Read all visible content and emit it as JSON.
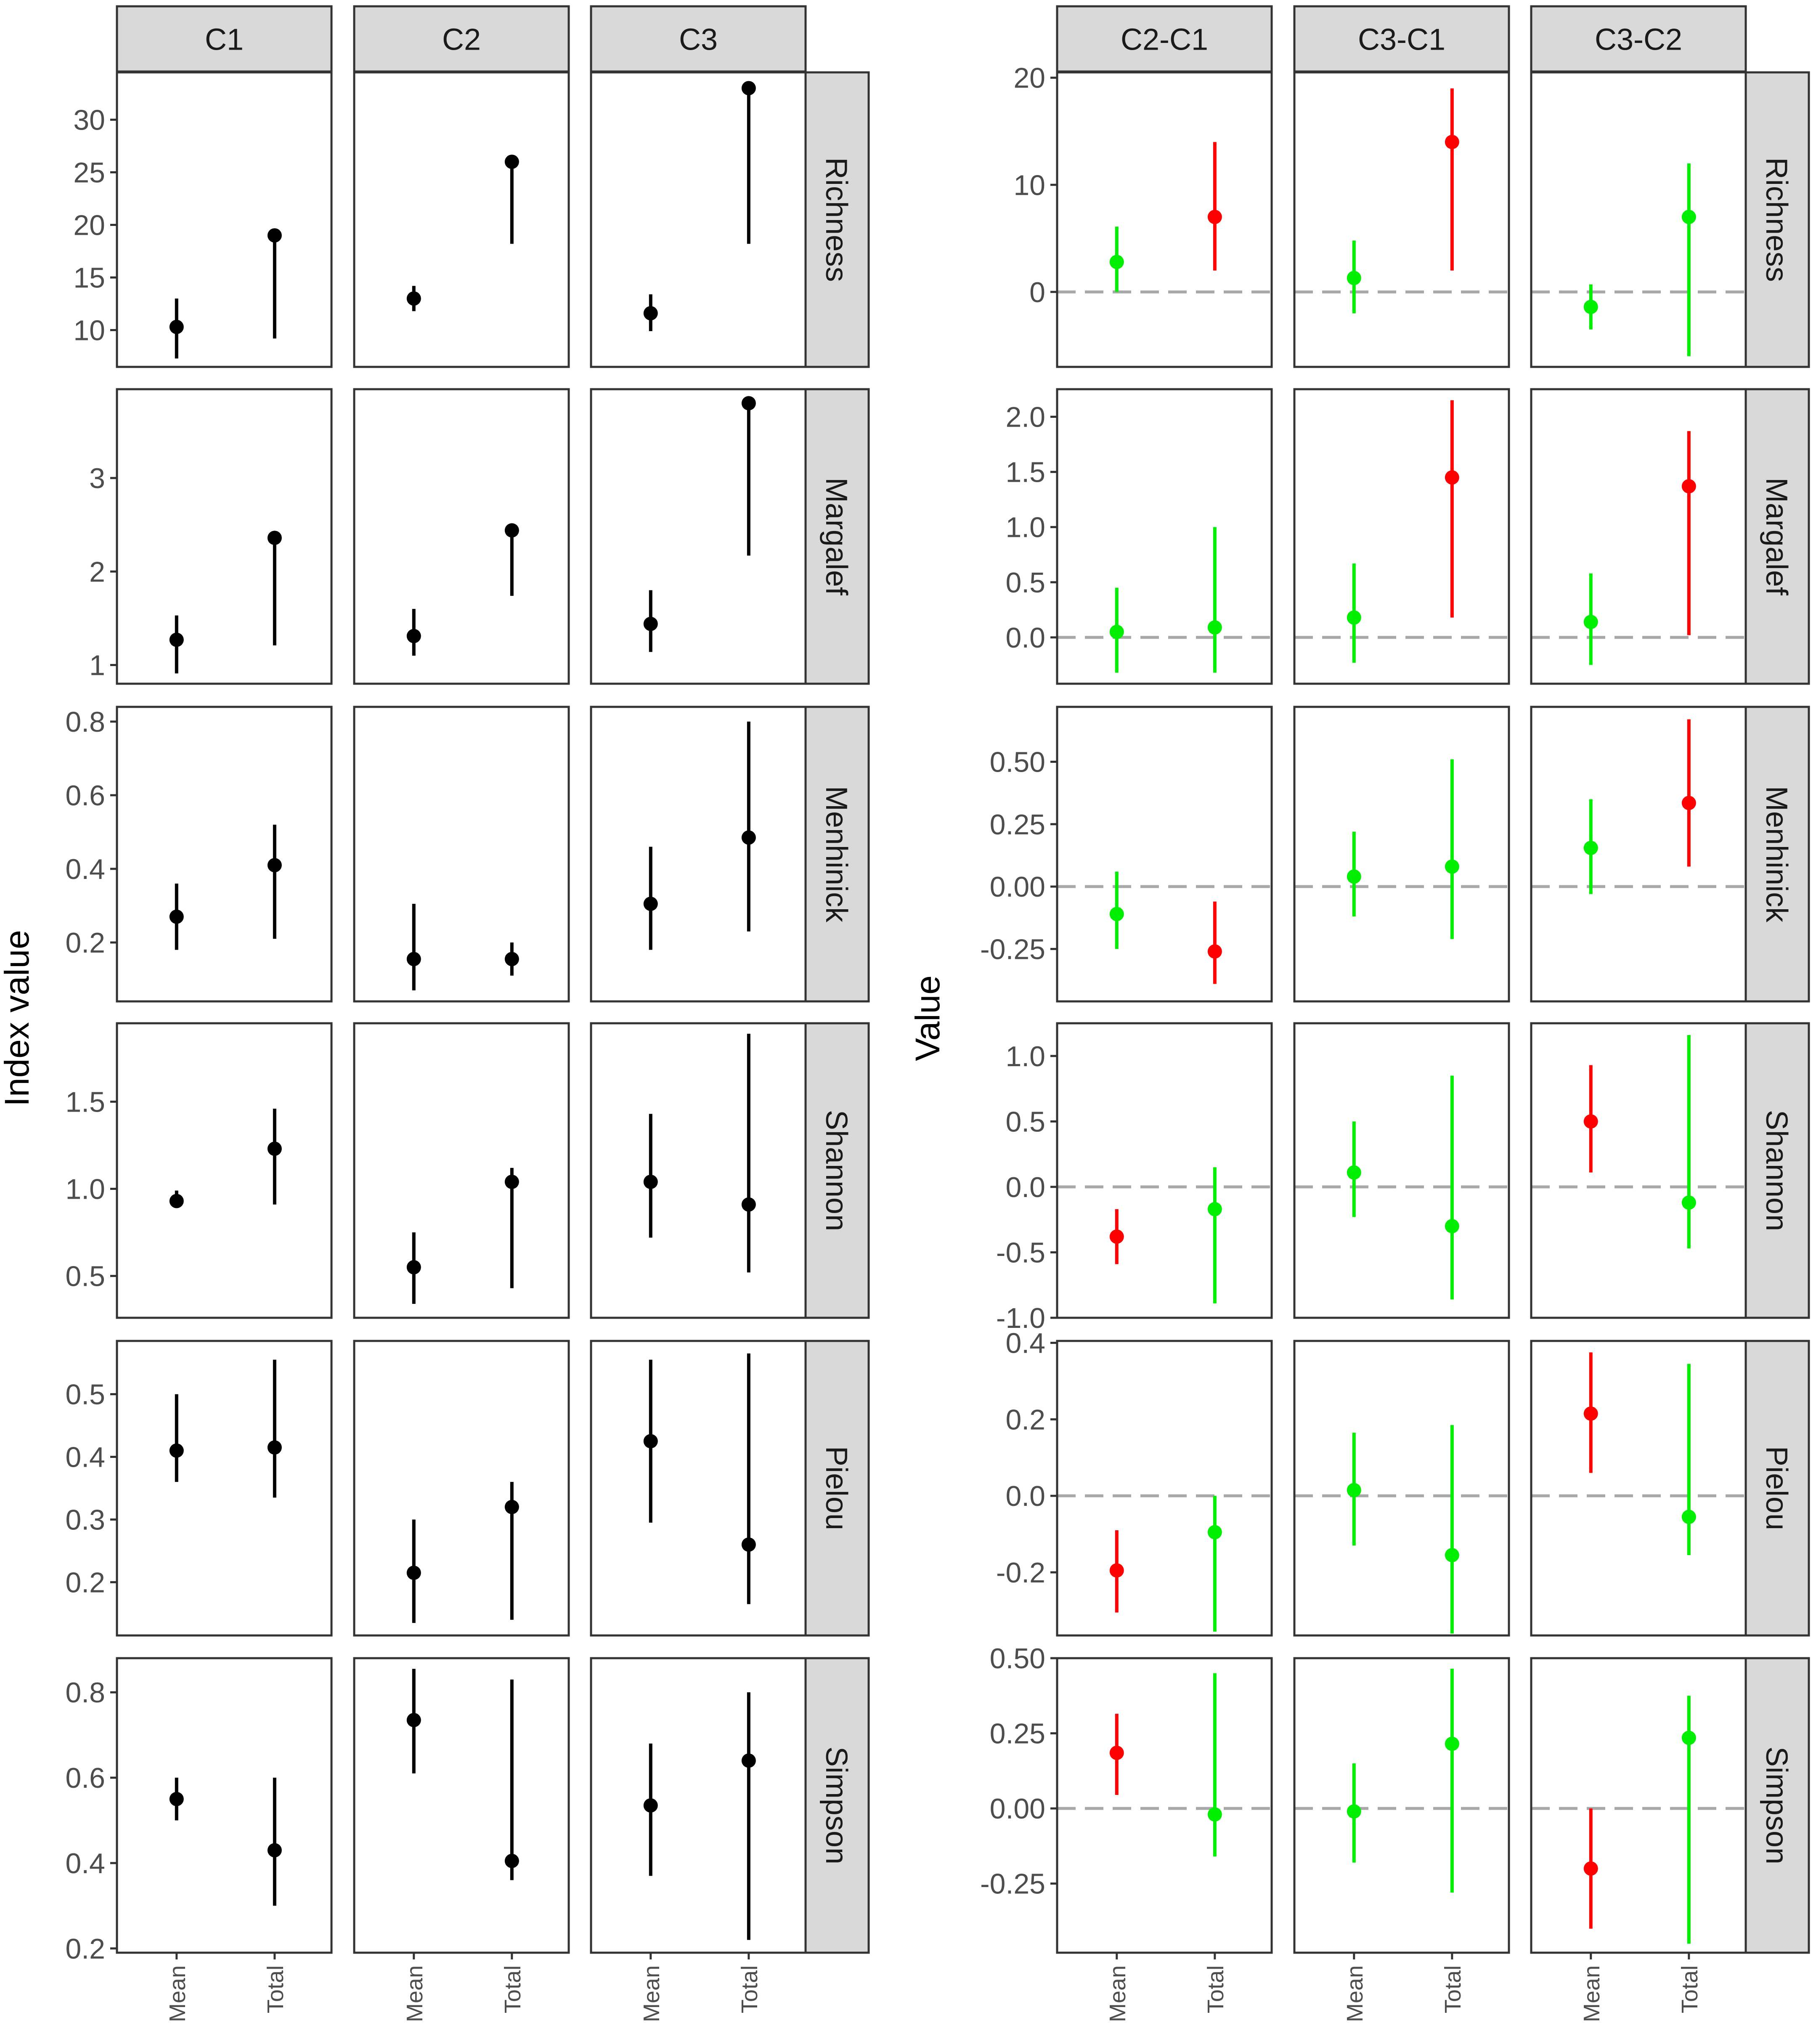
{
  "figure": {
    "left_ylabel": "Index value",
    "right_ylabel": "Value"
  },
  "colors": {
    "point": "#000000",
    "significant": "#ff0000",
    "nonsignificant": "#00ee00",
    "zero_line": "#a8a8a8",
    "strip_fill": "#d9d9d9",
    "panel_border": "#333333",
    "tick_text": "#4d4d4d"
  },
  "chart_data": [
    {
      "type": "pointrange",
      "title": "",
      "columns": [
        "C1",
        "C2",
        "C3"
      ],
      "rows": [
        "Richness",
        "Margalef",
        "Menhinick",
        "Shannon",
        "Pielou",
        "Simpson"
      ],
      "categories": [
        "Mean",
        "Total"
      ],
      "ylabel": "Index value",
      "xlabel": "",
      "panels": {
        "Richness": {
          "ylim": [
            6.5,
            34.5
          ],
          "yticks": [
            10,
            15,
            20,
            25,
            30
          ],
          "data": {
            "C1": [
              {
                "est": 10.3,
                "lo": 7.3,
                "hi": 13.0
              },
              {
                "est": 19.0,
                "lo": 9.2,
                "hi": 19.0
              }
            ],
            "C2": [
              {
                "est": 13.0,
                "lo": 11.8,
                "hi": 14.2
              },
              {
                "est": 26.0,
                "lo": 18.2,
                "hi": 26.0
              }
            ],
            "C3": [
              {
                "est": 11.6,
                "lo": 9.9,
                "hi": 13.4
              },
              {
                "est": 33.0,
                "lo": 18.2,
                "hi": 33.0
              }
            ]
          }
        },
        "Margalef": {
          "ylim": [
            0.8,
            3.95
          ],
          "yticks": [
            1,
            2,
            3
          ],
          "data": {
            "C1": [
              {
                "est": 1.27,
                "lo": 0.91,
                "hi": 1.53
              },
              {
                "est": 2.36,
                "lo": 1.21,
                "hi": 2.36
              }
            ],
            "C2": [
              {
                "est": 1.31,
                "lo": 1.1,
                "hi": 1.6
              },
              {
                "est": 2.44,
                "lo": 1.74,
                "hi": 2.44
              }
            ],
            "C3": [
              {
                "est": 1.44,
                "lo": 1.14,
                "hi": 1.8
              },
              {
                "est": 3.8,
                "lo": 2.17,
                "hi": 3.8
              }
            ]
          }
        },
        "Menhinick": {
          "ylim": [
            0.04,
            0.84
          ],
          "yticks": [
            0.2,
            0.4,
            0.6,
            0.8
          ],
          "data": {
            "C1": [
              {
                "est": 0.27,
                "lo": 0.18,
                "hi": 0.36
              },
              {
                "est": 0.41,
                "lo": 0.21,
                "hi": 0.52
              }
            ],
            "C2": [
              {
                "est": 0.155,
                "lo": 0.07,
                "hi": 0.305
              },
              {
                "est": 0.155,
                "lo": 0.11,
                "hi": 0.2
              }
            ],
            "C3": [
              {
                "est": 0.305,
                "lo": 0.18,
                "hi": 0.46
              },
              {
                "est": 0.485,
                "lo": 0.23,
                "hi": 0.8
              }
            ]
          }
        },
        "Shannon": {
          "ylim": [
            0.26,
            1.95
          ],
          "yticks": [
            0.5,
            1.0,
            1.5
          ],
          "data": {
            "C1": [
              {
                "est": 0.93,
                "lo": 0.89,
                "hi": 0.99
              },
              {
                "est": 1.23,
                "lo": 0.91,
                "hi": 1.46
              }
            ],
            "C2": [
              {
                "est": 0.55,
                "lo": 0.34,
                "hi": 0.75
              },
              {
                "est": 1.04,
                "lo": 0.43,
                "hi": 1.12
              }
            ],
            "C3": [
              {
                "est": 1.04,
                "lo": 0.72,
                "hi": 1.43
              },
              {
                "est": 0.91,
                "lo": 0.52,
                "hi": 1.89
              }
            ]
          }
        },
        "Pielou": {
          "ylim": [
            0.115,
            0.585
          ],
          "yticks": [
            0.2,
            0.3,
            0.4,
            0.5
          ],
          "data": {
            "C1": [
              {
                "est": 0.41,
                "lo": 0.36,
                "hi": 0.5
              },
              {
                "est": 0.415,
                "lo": 0.335,
                "hi": 0.555
              }
            ],
            "C2": [
              {
                "est": 0.215,
                "lo": 0.135,
                "hi": 0.3
              },
              {
                "est": 0.32,
                "lo": 0.14,
                "hi": 0.36
              }
            ],
            "C3": [
              {
                "est": 0.425,
                "lo": 0.295,
                "hi": 0.555
              },
              {
                "est": 0.26,
                "lo": 0.165,
                "hi": 0.565
              }
            ]
          }
        },
        "Simpson": {
          "ylim": [
            0.19,
            0.88
          ],
          "yticks": [
            0.2,
            0.4,
            0.6,
            0.8
          ],
          "data": {
            "C1": [
              {
                "est": 0.55,
                "lo": 0.5,
                "hi": 0.6
              },
              {
                "est": 0.43,
                "lo": 0.3,
                "hi": 0.6
              }
            ],
            "C2": [
              {
                "est": 0.735,
                "lo": 0.61,
                "hi": 0.855
              },
              {
                "est": 0.405,
                "lo": 0.36,
                "hi": 0.83
              }
            ],
            "C3": [
              {
                "est": 0.535,
                "lo": 0.37,
                "hi": 0.68
              },
              {
                "est": 0.64,
                "lo": 0.22,
                "hi": 0.8
              }
            ]
          }
        }
      }
    },
    {
      "type": "pointrange",
      "title": "",
      "columns": [
        "C2-C1",
        "C3-C1",
        "C3-C2"
      ],
      "rows": [
        "Richness",
        "Margalef",
        "Menhinick",
        "Shannon",
        "Pielou",
        "Simpson"
      ],
      "categories": [
        "Mean",
        "Total"
      ],
      "ylabel": "Value",
      "xlabel": "",
      "reference_line": 0,
      "color_rule": "red = interval excludes 0; green = interval includes 0",
      "panels": {
        "Richness": {
          "ylim": [
            -7,
            20.5
          ],
          "yticks": [
            0,
            10,
            20
          ],
          "data": {
            "C2-C1": [
              {
                "est": 2.8,
                "lo": 0.0,
                "hi": 6.1,
                "sig": false
              },
              {
                "est": 7.0,
                "lo": 2.0,
                "hi": 14.0,
                "sig": true
              }
            ],
            "C3-C1": [
              {
                "est": 1.3,
                "lo": -2.0,
                "hi": 4.8,
                "sig": false
              },
              {
                "est": 14.0,
                "lo": 2.0,
                "hi": 19.0,
                "sig": true
              }
            ],
            "C3-C2": [
              {
                "est": -1.4,
                "lo": -3.5,
                "hi": 0.7,
                "sig": false
              },
              {
                "est": 7.0,
                "lo": -6.0,
                "hi": 12.0,
                "sig": false
              }
            ]
          }
        },
        "Margalef": {
          "ylim": [
            -0.42,
            2.25
          ],
          "yticks": [
            0.0,
            0.5,
            1.0,
            1.5,
            2.0
          ],
          "data": {
            "C2-C1": [
              {
                "est": 0.05,
                "lo": -0.32,
                "hi": 0.45,
                "sig": false
              },
              {
                "est": 0.09,
                "lo": -0.32,
                "hi": 1.0,
                "sig": false
              }
            ],
            "C3-C1": [
              {
                "est": 0.18,
                "lo": -0.23,
                "hi": 0.67,
                "sig": false
              },
              {
                "est": 1.45,
                "lo": 0.18,
                "hi": 2.15,
                "sig": true
              }
            ],
            "C3-C2": [
              {
                "est": 0.14,
                "lo": -0.25,
                "hi": 0.58,
                "sig": false
              },
              {
                "est": 1.37,
                "lo": 0.02,
                "hi": 1.87,
                "sig": true
              }
            ]
          }
        },
        "Menhinick": {
          "ylim": [
            -0.46,
            0.72
          ],
          "yticks": [
            -0.25,
            0.0,
            0.25,
            0.5
          ],
          "data": {
            "C2-C1": [
              {
                "est": -0.11,
                "lo": -0.25,
                "hi": 0.06,
                "sig": false
              },
              {
                "est": -0.26,
                "lo": -0.39,
                "hi": -0.06,
                "sig": true
              }
            ],
            "C3-C1": [
              {
                "est": 0.04,
                "lo": -0.12,
                "hi": 0.22,
                "sig": false
              },
              {
                "est": 0.08,
                "lo": -0.21,
                "hi": 0.51,
                "sig": false
              }
            ],
            "C3-C2": [
              {
                "est": 0.155,
                "lo": -0.03,
                "hi": 0.35,
                "sig": false
              },
              {
                "est": 0.335,
                "lo": 0.08,
                "hi": 0.67,
                "sig": true
              }
            ]
          }
        },
        "Shannon": {
          "ylim": [
            -1.0,
            1.25
          ],
          "yticks": [
            -1.0,
            -0.5,
            0.0,
            0.5,
            1.0
          ],
          "data": {
            "C2-C1": [
              {
                "est": -0.38,
                "lo": -0.59,
                "hi": -0.17,
                "sig": true
              },
              {
                "est": -0.17,
                "lo": -0.89,
                "hi": 0.15,
                "sig": false
              }
            ],
            "C3-C1": [
              {
                "est": 0.11,
                "lo": -0.23,
                "hi": 0.5,
                "sig": false
              },
              {
                "est": -0.3,
                "lo": -0.86,
                "hi": 0.85,
                "sig": false
              }
            ],
            "C3-C2": [
              {
                "est": 0.5,
                "lo": 0.11,
                "hi": 0.93,
                "sig": true
              },
              {
                "est": -0.12,
                "lo": -0.47,
                "hi": 1.16,
                "sig": false
              }
            ]
          }
        },
        "Pielou": {
          "ylim": [
            -0.365,
            0.405
          ],
          "yticks": [
            -0.2,
            0.0,
            0.2,
            0.4
          ],
          "data": {
            "C2-C1": [
              {
                "est": -0.195,
                "lo": -0.305,
                "hi": -0.09,
                "sig": true
              },
              {
                "est": -0.095,
                "lo": -0.355,
                "hi": 0.0,
                "sig": false
              }
            ],
            "C3-C1": [
              {
                "est": 0.015,
                "lo": -0.13,
                "hi": 0.165,
                "sig": false
              },
              {
                "est": -0.155,
                "lo": -0.36,
                "hi": 0.185,
                "sig": false
              }
            ],
            "C3-C2": [
              {
                "est": 0.215,
                "lo": 0.06,
                "hi": 0.375,
                "sig": true
              },
              {
                "est": -0.055,
                "lo": -0.155,
                "hi": 0.345,
                "sig": false
              }
            ]
          }
        },
        "Simpson": {
          "ylim": [
            -0.48,
            0.5
          ],
          "yticks": [
            -0.25,
            0.0,
            0.25,
            0.5
          ],
          "data": {
            "C2-C1": [
              {
                "est": 0.185,
                "lo": 0.045,
                "hi": 0.315,
                "sig": true
              },
              {
                "est": -0.02,
                "lo": -0.16,
                "hi": 0.45,
                "sig": false
              }
            ],
            "C3-C1": [
              {
                "est": -0.01,
                "lo": -0.18,
                "hi": 0.15,
                "sig": false
              },
              {
                "est": 0.215,
                "lo": -0.28,
                "hi": 0.465,
                "sig": false
              }
            ],
            "C3-C2": [
              {
                "est": -0.2,
                "lo": -0.4,
                "hi": 0.0,
                "sig": true
              },
              {
                "est": 0.235,
                "lo": -0.45,
                "hi": 0.375,
                "sig": false
              }
            ]
          }
        }
      }
    }
  ]
}
